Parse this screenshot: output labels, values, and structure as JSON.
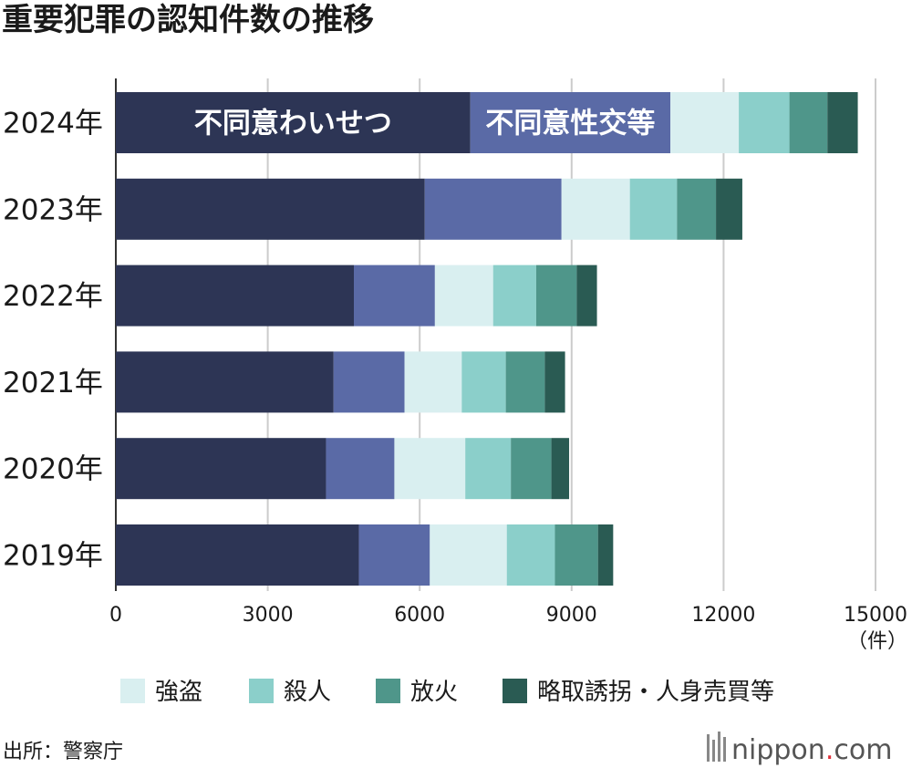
{
  "chart_data": {
    "type": "bar",
    "orientation": "horizontal",
    "stacked": true,
    "title": "重要犯罪の認知件数の推移",
    "categories": [
      "2024年",
      "2023年",
      "2022年",
      "2021年",
      "2020年",
      "2019年"
    ],
    "series": [
      {
        "name": "不同意わいせつ",
        "color": "#2d3555",
        "values": [
          7000,
          6100,
          4700,
          4300,
          4150,
          4800
        ]
      },
      {
        "name": "不同意性交等",
        "color": "#5a6aa6",
        "values": [
          3950,
          2700,
          1600,
          1400,
          1350,
          1400
        ]
      },
      {
        "name": "強盗",
        "color": "#d9eff0",
        "values": [
          1350,
          1350,
          1150,
          1130,
          1400,
          1520
        ]
      },
      {
        "name": "殺人",
        "color": "#8bcfca",
        "values": [
          1000,
          930,
          850,
          870,
          900,
          950
        ]
      },
      {
        "name": "放火",
        "color": "#4f968a",
        "values": [
          750,
          770,
          800,
          770,
          800,
          850
        ]
      },
      {
        "name": "略取誘拐・人身売買等",
        "color": "#2a5b53",
        "values": [
          600,
          520,
          400,
          400,
          350,
          300
        ]
      }
    ],
    "xlim": [
      0,
      15000
    ],
    "xticks": [
      "0",
      "3000",
      "6000",
      "9000",
      "12000",
      "15000"
    ],
    "xunit": "（件）",
    "grid": true,
    "inline_labels": [
      "不同意わいせつ",
      "不同意性交等"
    ],
    "legend": {
      "position": "bottom",
      "items": [
        "強盗",
        "殺人",
        "放火",
        "略取誘拐・人身売買等"
      ]
    }
  },
  "source": "出所：警察庁",
  "brand": {
    "name": "nippon",
    "dot": ".",
    "suffix": "com"
  }
}
